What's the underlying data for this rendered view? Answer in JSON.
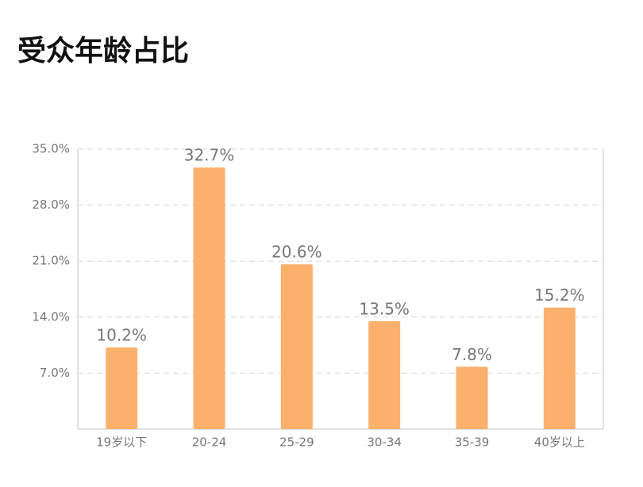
{
  "chart_data": {
    "type": "bar",
    "title": "受众年龄占比",
    "categories": [
      "19岁以下",
      "20-24",
      "25-29",
      "30-34",
      "35-39",
      "40岁以上"
    ],
    "values": [
      10.2,
      32.7,
      20.6,
      13.5,
      7.8,
      15.2
    ],
    "value_labels": [
      "10.2%",
      "32.7%",
      "20.6%",
      "13.5%",
      "7.8%",
      "15.2%"
    ],
    "color": "#fbb06c",
    "ylim": [
      0,
      35
    ],
    "yticks": [
      {
        "value": 7,
        "label": "7.0%"
      },
      {
        "value": 14,
        "label": "14.0%"
      },
      {
        "value": 21,
        "label": "21.0%"
      },
      {
        "value": 28,
        "label": "28.0%"
      },
      {
        "value": 35,
        "label": "35.0%"
      }
    ],
    "grid": true
  }
}
